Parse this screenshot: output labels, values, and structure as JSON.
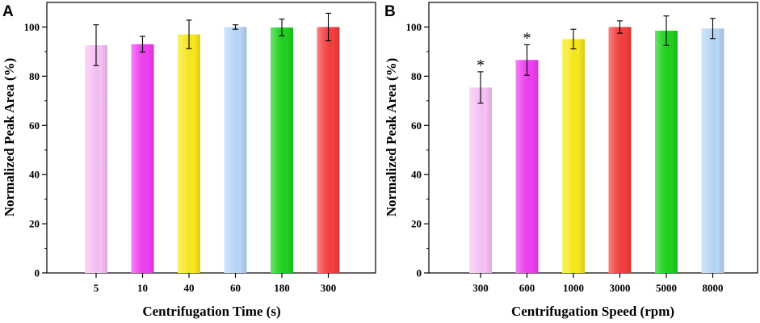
{
  "chart_data": [
    {
      "panel": "A",
      "type": "bar",
      "xlabel": "Centrifugation Time (s)",
      "ylabel": "Normalized Peak Area (%)",
      "ylim": [
        0,
        110
      ],
      "yticks": [
        0,
        20,
        40,
        60,
        80,
        100
      ],
      "categories": [
        "5",
        "10",
        "40",
        "60",
        "180",
        "300"
      ],
      "values": [
        92.6,
        93.0,
        97.0,
        100.0,
        99.8,
        100.0
      ],
      "errors": [
        8.3,
        3.2,
        5.8,
        0.9,
        3.4,
        5.6
      ],
      "colors": [
        "#f6c2f4",
        "#ee3ff0",
        "#f8e820",
        "#b8d6f7",
        "#1fd11f",
        "#f43f3f"
      ],
      "annotations": []
    },
    {
      "panel": "B",
      "type": "bar",
      "xlabel": "Centrifugation Speed (rpm)",
      "ylabel": "Normalized Peak Area (%)",
      "ylim": [
        0,
        110
      ],
      "yticks": [
        0,
        20,
        40,
        60,
        80,
        100
      ],
      "categories": [
        "300",
        "600",
        "1000",
        "3000",
        "5000",
        "8000"
      ],
      "values": [
        75.4,
        86.6,
        95.1,
        100.0,
        98.5,
        99.4
      ],
      "errors": [
        6.4,
        6.2,
        4.0,
        2.5,
        6.0,
        4.1
      ],
      "colors": [
        "#f6c2f4",
        "#ee3ff0",
        "#f8e820",
        "#f43f3f",
        "#1fd11f",
        "#b8d6f7"
      ],
      "annotations": [
        "*",
        "*",
        "",
        "",
        "",
        ""
      ]
    }
  ]
}
